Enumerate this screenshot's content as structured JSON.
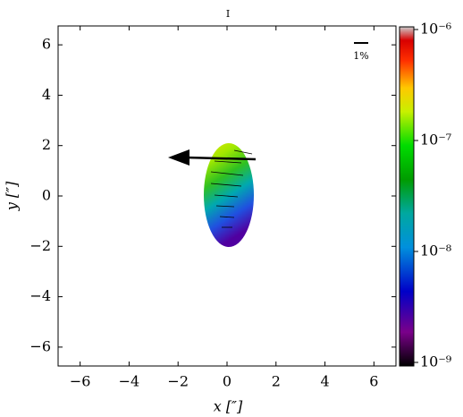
{
  "chart_data": {
    "type": "image",
    "title": "I",
    "x_label": "x [″]",
    "y_label": "y [″]",
    "xlim": [
      -6.9,
      6.9
    ],
    "ylim": [
      -6.75,
      6.75
    ],
    "xticks": [
      {
        "value": -6,
        "label": "−6"
      },
      {
        "value": -4,
        "label": "−4"
      },
      {
        "value": -2,
        "label": "−2"
      },
      0,
      2,
      4,
      6
    ],
    "yticks": [
      {
        "value": -6,
        "label": "−6"
      },
      {
        "value": -4,
        "label": "−4"
      },
      {
        "value": -2,
        "label": "−2"
      },
      0,
      2,
      4,
      6
    ],
    "colorbar": {
      "scale": "log",
      "lim": [
        1e-09,
        1e-06
      ],
      "ticks": [
        {
          "value": 1e-09,
          "label": "10⁻⁹"
        },
        {
          "value": 1e-08,
          "label": "10⁻⁸"
        },
        {
          "value": 1e-07,
          "label": "10⁻⁷"
        },
        {
          "value": 1e-06,
          "label": "10⁻⁶"
        }
      ]
    },
    "scale_bar_label": "1%"
  }
}
